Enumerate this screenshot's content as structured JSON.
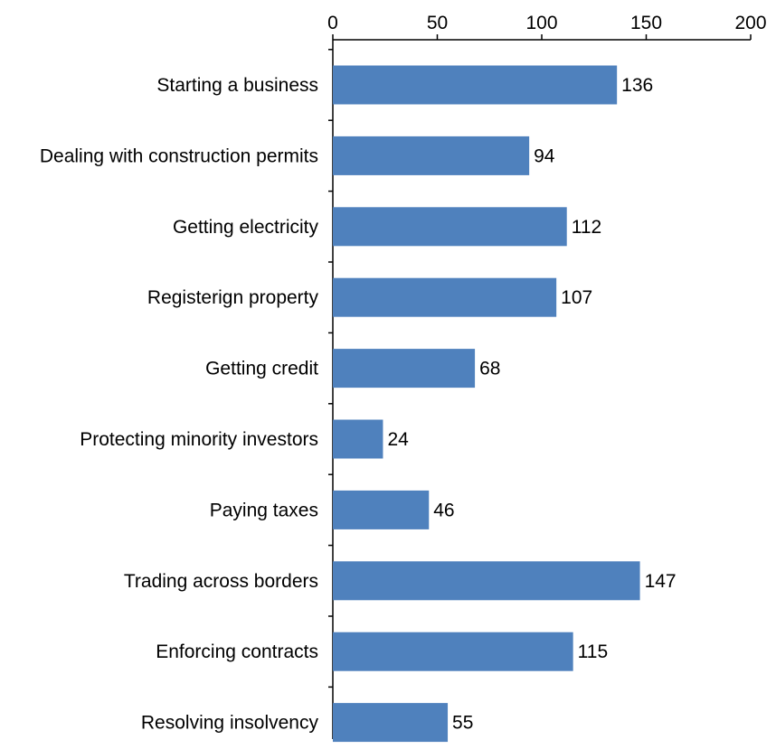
{
  "chart_data": {
    "type": "bar",
    "orientation": "horizontal",
    "categories": [
      "Starting a business",
      "Dealing with construction permits",
      "Getting electricity",
      "Registerign property",
      "Getting credit",
      "Protecting minority investors",
      "Paying taxes",
      "Trading across borders",
      "Enforcing contracts",
      "Resolving insolvency"
    ],
    "values": [
      136,
      94,
      112,
      107,
      68,
      24,
      46,
      147,
      115,
      55
    ],
    "data_labels": [
      "136",
      "94",
      "112",
      "107",
      "68",
      "24",
      "46",
      "147",
      "115",
      "55"
    ],
    "xlim": [
      0,
      200
    ],
    "x_ticks": [
      0,
      50,
      100,
      150,
      200
    ],
    "x_tick_labels": [
      "0",
      "50",
      "100",
      "150",
      "200"
    ],
    "x_axis_position": "top",
    "grid": false,
    "legend": "none",
    "bar_color": "#4F81BD",
    "title": "",
    "xlabel": "",
    "ylabel": ""
  }
}
